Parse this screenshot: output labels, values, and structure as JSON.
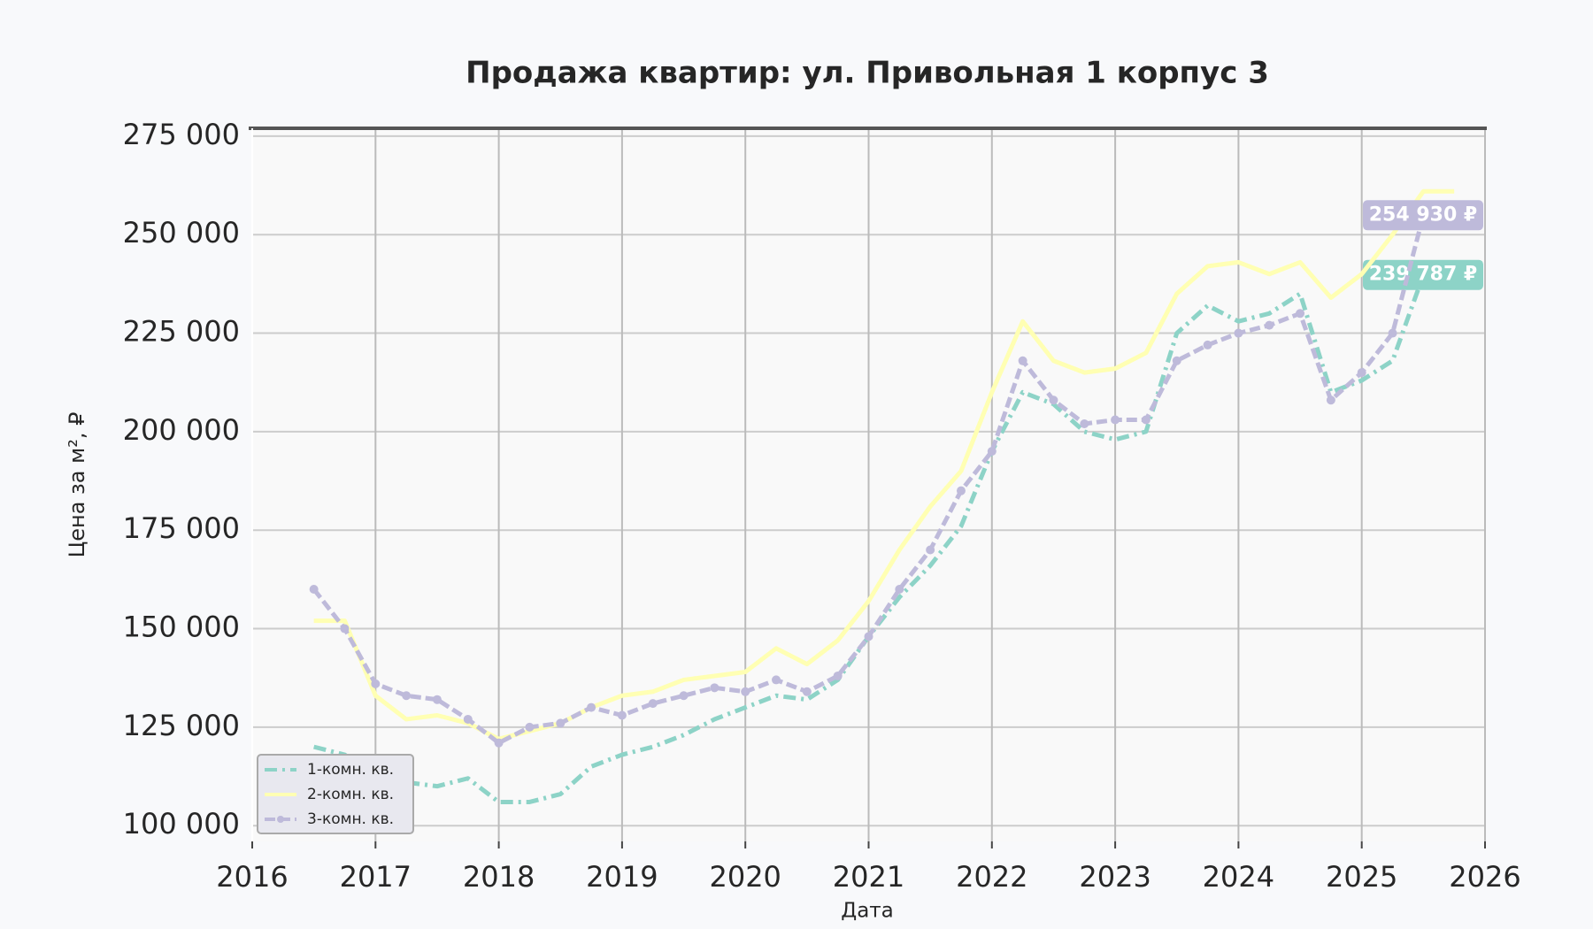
{
  "chart_data": {
    "type": "line",
    "title": "Продажа квартир: ул. Привольная 1 корпус 3",
    "x_label": "Дата",
    "y_label": "Цена за м², ₽",
    "x": [
      2016.5,
      2016.75,
      2017.0,
      2017.25,
      2017.5,
      2017.75,
      2018.0,
      2018.25,
      2018.5,
      2018.75,
      2019.0,
      2019.25,
      2019.5,
      2019.75,
      2020.0,
      2020.25,
      2020.5,
      2020.75,
      2021.0,
      2021.25,
      2021.5,
      2021.75,
      2022.0,
      2022.25,
      2022.5,
      2022.75,
      2023.0,
      2023.25,
      2023.5,
      2023.75,
      2024.0,
      2024.25,
      2024.5,
      2024.75,
      2025.0,
      2025.25,
      2025.5,
      2025.75
    ],
    "series": [
      {
        "name": "1-комн. кв.",
        "color": "#8dd3c7",
        "linestyle": "dashdot",
        "marker": null,
        "values": [
          120000,
          118000,
          112000,
          111000,
          110000,
          112000,
          106000,
          106000,
          108000,
          115000,
          118000,
          120000,
          123000,
          127000,
          130000,
          133000,
          132000,
          137000,
          148000,
          158000,
          166000,
          176000,
          195000,
          210000,
          207000,
          200000,
          198000,
          200000,
          225000,
          232000,
          228000,
          230000,
          235000,
          210000,
          213000,
          218000,
          239787,
          null
        ],
        "value_labels": [
          null,
          null,
          null,
          null,
          null,
          null,
          null,
          null,
          null,
          null,
          null,
          null,
          null,
          null,
          null,
          null,
          null,
          null,
          null,
          null,
          null,
          null,
          null,
          null,
          null,
          null,
          null,
          null,
          null,
          null,
          null,
          null,
          null,
          null,
          null,
          null,
          "239 787 ₽",
          null
        ]
      },
      {
        "name": "2-комн. кв.",
        "color": "#ffffb3",
        "linestyle": "solid",
        "marker": null,
        "values": [
          152000,
          152000,
          133000,
          127000,
          128000,
          126000,
          122000,
          124000,
          126000,
          130000,
          133000,
          134000,
          137000,
          138000,
          139000,
          145000,
          141000,
          147000,
          157000,
          170000,
          181000,
          190000,
          210000,
          228000,
          218000,
          215000,
          216000,
          220000,
          235000,
          242000,
          243000,
          240000,
          243000,
          234000,
          240000,
          250000,
          261000,
          261000
        ]
      },
      {
        "name": "3-комн. кв.",
        "color": "#bebada",
        "linestyle": "dashed",
        "marker": "o",
        "values": [
          160000,
          150000,
          136000,
          133000,
          132000,
          127000,
          121000,
          125000,
          126000,
          130000,
          128000,
          131000,
          133000,
          135000,
          134000,
          137000,
          134000,
          138000,
          148000,
          160000,
          170000,
          185000,
          195000,
          218000,
          208000,
          202000,
          203000,
          203000,
          218000,
          222000,
          225000,
          227000,
          230000,
          208000,
          215000,
          225000,
          254930,
          null
        ],
        "value_labels": [
          null,
          null,
          null,
          null,
          null,
          null,
          null,
          null,
          null,
          null,
          null,
          null,
          null,
          null,
          null,
          null,
          null,
          null,
          null,
          null,
          null,
          null,
          null,
          null,
          null,
          null,
          null,
          null,
          null,
          null,
          null,
          null,
          null,
          null,
          null,
          null,
          "254 930 ₽",
          null
        ]
      }
    ],
    "xlim": [
      2016,
      2026
    ],
    "xticks": [
      2016,
      2017,
      2018,
      2019,
      2020,
      2021,
      2022,
      2023,
      2024,
      2025,
      2026
    ],
    "ylim": [
      96000,
      277000
    ],
    "yticks": [
      {
        "value": 100000,
        "label": "100 000"
      },
      {
        "value": 125000,
        "label": "125 000"
      },
      {
        "value": 150000,
        "label": "150 000"
      },
      {
        "value": 175000,
        "label": "175 000"
      },
      {
        "value": 200000,
        "label": "200 000"
      },
      {
        "value": 225000,
        "label": "225 000"
      },
      {
        "value": 250000,
        "label": "250 000"
      },
      {
        "value": 275000,
        "label": "275 000"
      }
    ],
    "grid": true,
    "legend": "lower left"
  }
}
